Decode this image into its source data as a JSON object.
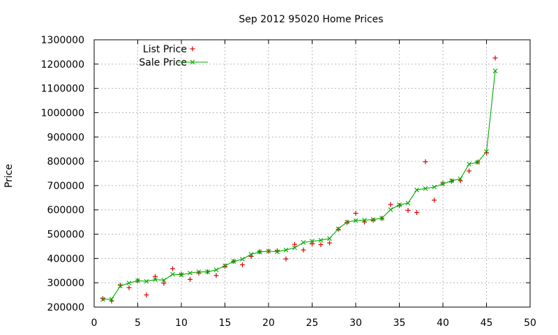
{
  "chart_data": {
    "type": "line",
    "title": "Sep 2012 95020 Home Prices",
    "xlabel": "",
    "ylabel": "Price",
    "xlim": [
      0,
      50
    ],
    "ylim": [
      200000,
      1300000
    ],
    "grid": true,
    "legend_position": "top-left",
    "x_ticks": [
      0,
      5,
      10,
      15,
      20,
      25,
      30,
      35,
      40,
      45,
      50
    ],
    "y_ticks": [
      200000,
      300000,
      400000,
      500000,
      600000,
      700000,
      800000,
      900000,
      1000000,
      1100000,
      1200000,
      1300000
    ],
    "x_tick_labels": [
      "0",
      "5",
      "10",
      "15",
      "20",
      "25",
      "30",
      "35",
      "40",
      "45",
      "50"
    ],
    "y_tick_labels": [
      "200000",
      "300000",
      "400000",
      "500000",
      "600000",
      "700000",
      "800000",
      "900000",
      "1000000",
      "1100000",
      "1200000",
      "1300000"
    ],
    "series": [
      {
        "name": "List Price",
        "kind": "scatter",
        "marker": "plus",
        "color": "#dd0000",
        "x": [
          1,
          2,
          3,
          4,
          5,
          6,
          7,
          8,
          9,
          10,
          11,
          12,
          13,
          14,
          15,
          16,
          17,
          18,
          19,
          20,
          21,
          22,
          23,
          24,
          25,
          26,
          27,
          28,
          29,
          30,
          31,
          32,
          33,
          34,
          35,
          36,
          37,
          38,
          39,
          40,
          41,
          42,
          43,
          44,
          45,
          46
        ],
        "y": [
          235000,
          225000,
          290000,
          280000,
          308000,
          250000,
          326000,
          298000,
          358000,
          335000,
          314000,
          340000,
          345000,
          330000,
          368000,
          388000,
          374000,
          408000,
          428000,
          430000,
          432000,
          398000,
          458000,
          435000,
          460000,
          457000,
          464000,
          520000,
          548000,
          586000,
          550000,
          557000,
          565000,
          622000,
          618000,
          598000,
          589000,
          798000,
          640000,
          710000,
          718000,
          720000,
          760000,
          797000,
          835000,
          1225000
        ]
      },
      {
        "name": "Sale Price",
        "kind": "line",
        "marker": "x",
        "color": "#00aa00",
        "x": [
          1,
          2,
          3,
          4,
          5,
          6,
          7,
          8,
          9,
          10,
          11,
          12,
          13,
          14,
          15,
          16,
          17,
          18,
          19,
          20,
          21,
          22,
          23,
          24,
          25,
          26,
          27,
          28,
          29,
          30,
          31,
          32,
          33,
          34,
          35,
          36,
          37,
          38,
          39,
          40,
          41,
          42,
          43,
          44,
          45,
          46
        ],
        "y": [
          232000,
          232000,
          287000,
          299000,
          309000,
          306000,
          313000,
          311000,
          335000,
          333000,
          340000,
          345000,
          345000,
          353000,
          370000,
          388000,
          397000,
          417000,
          427000,
          430000,
          428000,
          435000,
          444000,
          466000,
          471000,
          475000,
          482000,
          522000,
          550000,
          556000,
          558000,
          560000,
          566000,
          601000,
          621000,
          628000,
          682000,
          688000,
          694000,
          707000,
          720000,
          728000,
          788000,
          796000,
          840000,
          1172000
        ]
      }
    ]
  }
}
